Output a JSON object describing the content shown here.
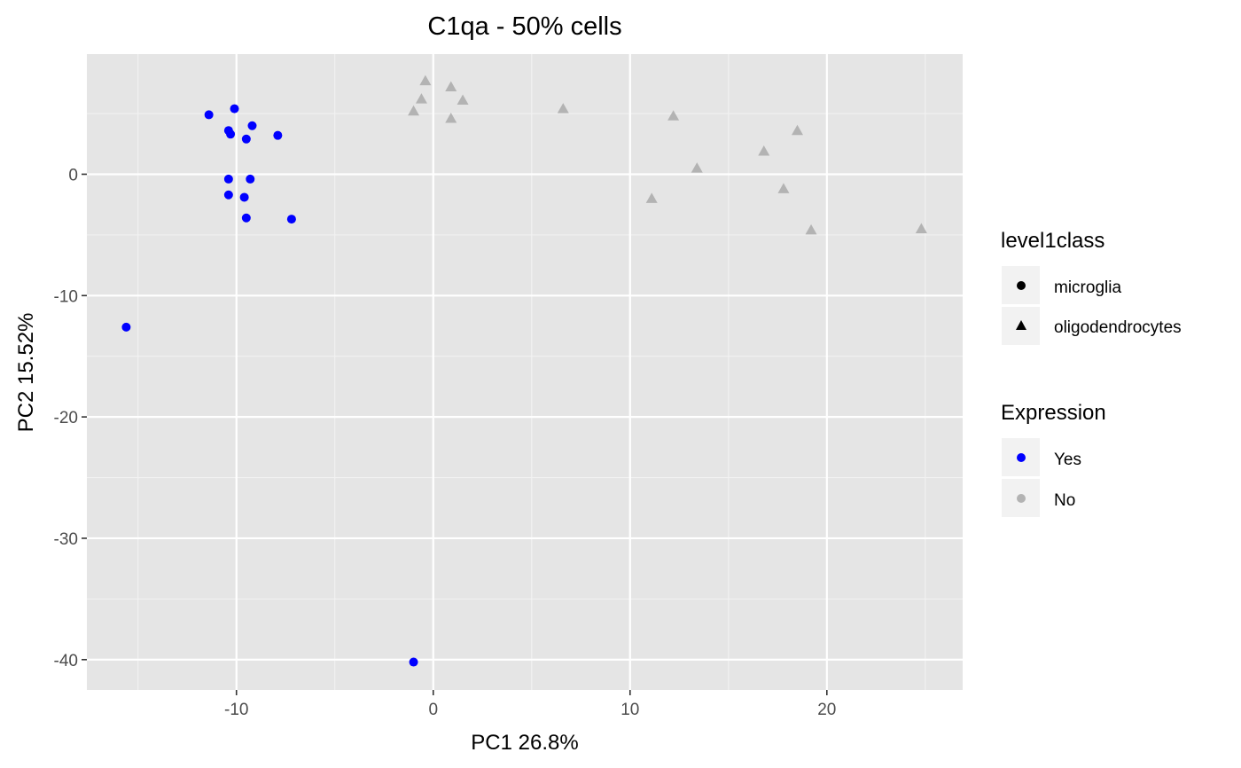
{
  "chart_data": {
    "type": "scatter",
    "title": "C1qa - 50% cells",
    "xlabel": "PC1 26.8%",
    "ylabel": "PC2 15.52%",
    "xlim": [
      -17.6,
      26.9
    ],
    "ylim": [
      -42.5,
      9.9
    ],
    "x_ticks": [
      -10,
      0,
      10,
      20
    ],
    "y_ticks": [
      -40,
      -30,
      -20,
      -10,
      0
    ],
    "x_tick_labels": [
      "-10",
      "0",
      "10",
      "20"
    ],
    "y_tick_labels": [
      "-40",
      "-30",
      "-20",
      "-10",
      "0"
    ],
    "grid": true,
    "legend_position": "right",
    "legends": [
      {
        "title": "level1class",
        "entries": [
          {
            "label": "microglia",
            "shape": "circle"
          },
          {
            "label": "oligodendrocytes",
            "shape": "triangle"
          }
        ]
      },
      {
        "title": "Expression",
        "entries": [
          {
            "label": "Yes",
            "color": "#0000ff"
          },
          {
            "label": "No",
            "color": "#b3b3b3"
          }
        ]
      }
    ],
    "series": [
      {
        "level1class": "microglia",
        "expression": "Yes",
        "shape": "circle",
        "color": "#0000ff",
        "points": [
          {
            "x": -11.4,
            "y": 4.9
          },
          {
            "x": -10.1,
            "y": 5.4
          },
          {
            "x": -10.4,
            "y": 3.6
          },
          {
            "x": -10.3,
            "y": 3.3
          },
          {
            "x": -9.2,
            "y": 4.0
          },
          {
            "x": -9.5,
            "y": 2.9
          },
          {
            "x": -7.9,
            "y": 3.2
          },
          {
            "x": -10.4,
            "y": -0.4
          },
          {
            "x": -9.3,
            "y": -0.4
          },
          {
            "x": -10.4,
            "y": -1.7
          },
          {
            "x": -9.6,
            "y": -1.9
          },
          {
            "x": -9.5,
            "y": -3.6
          },
          {
            "x": -7.2,
            "y": -3.7
          },
          {
            "x": -15.6,
            "y": -12.6
          },
          {
            "x": -1.0,
            "y": -40.2
          }
        ]
      },
      {
        "level1class": "oligodendrocytes",
        "expression": "No",
        "shape": "triangle",
        "color": "#b3b3b3",
        "points": [
          {
            "x": -0.4,
            "y": 7.7
          },
          {
            "x": 0.9,
            "y": 7.2
          },
          {
            "x": -0.6,
            "y": 6.2
          },
          {
            "x": 1.5,
            "y": 6.1
          },
          {
            "x": -1.0,
            "y": 5.2
          },
          {
            "x": 0.9,
            "y": 4.6
          },
          {
            "x": 6.6,
            "y": 5.4
          },
          {
            "x": 12.2,
            "y": 4.8
          },
          {
            "x": 13.4,
            "y": 0.5
          },
          {
            "x": 11.1,
            "y": -2.0
          },
          {
            "x": 16.8,
            "y": 1.9
          },
          {
            "x": 18.5,
            "y": 3.6
          },
          {
            "x": 17.8,
            "y": -1.2
          },
          {
            "x": 19.2,
            "y": -4.6
          },
          {
            "x": 24.8,
            "y": -4.5
          }
        ]
      }
    ]
  }
}
